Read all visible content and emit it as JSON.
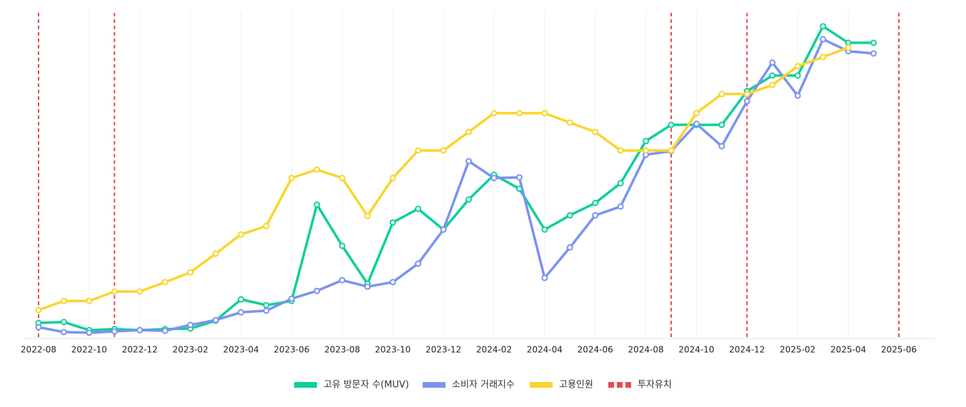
{
  "chart_data": {
    "type": "line",
    "x": [
      "2022-08",
      "2022-09",
      "2022-10",
      "2022-11",
      "2022-12",
      "2023-01",
      "2023-02",
      "2023-03",
      "2023-04",
      "2023-05",
      "2023-06",
      "2023-07",
      "2023-08",
      "2023-09",
      "2023-10",
      "2023-11",
      "2023-12",
      "2024-01",
      "2024-02",
      "2024-03",
      "2024-04",
      "2024-05",
      "2024-06",
      "2024-07",
      "2024-08",
      "2024-09",
      "2024-10",
      "2024-11",
      "2024-12",
      "2025-01",
      "2025-02",
      "2025-03",
      "2025-04",
      "2025-05"
    ],
    "xlim": [
      "2022-08",
      "2025-06"
    ],
    "xticks": [
      "2022-08",
      "2022-10",
      "2022-12",
      "2023-02",
      "2023-04",
      "2023-06",
      "2023-08",
      "2023-10",
      "2023-12",
      "2024-02",
      "2024-04",
      "2024-06",
      "2024-08",
      "2024-10",
      "2024-12",
      "2025-02",
      "2025-04",
      "2025-06"
    ],
    "ylim": [
      0,
      100
    ],
    "grid": true,
    "series": [
      {
        "name": "고유 방문자 수(MUV)",
        "color": "#0fcf9c",
        "values": [
          4.8,
          5.1,
          2.6,
          2.9,
          2.6,
          2.9,
          3.1,
          5.5,
          12.1,
          10.3,
          11.6,
          41.3,
          28.6,
          16.9,
          35.8,
          40.0,
          33.6,
          42.9,
          50.5,
          46.2,
          33.6,
          38.0,
          41.8,
          47.9,
          60.9,
          65.9,
          65.9,
          65.9,
          76.3,
          81.1,
          81.1,
          96.3,
          91.2,
          91.2
        ]
      },
      {
        "name": "소비자 거래지수",
        "color": "#7b93f0",
        "values": [
          3.5,
          2.0,
          1.8,
          2.2,
          2.6,
          2.4,
          4.2,
          5.7,
          8.1,
          8.6,
          12.3,
          14.7,
          18.0,
          16.0,
          17.4,
          23.1,
          33.6,
          54.7,
          49.5,
          49.7,
          18.7,
          28.1,
          38.0,
          40.7,
          56.7,
          57.8,
          66.2,
          59.3,
          73.2,
          85.1,
          74.9,
          92.3,
          88.6,
          87.9
        ]
      },
      {
        "name": "고용인원",
        "color": "#fad52c",
        "values": [
          8.8,
          11.6,
          11.6,
          14.5,
          14.5,
          17.4,
          20.4,
          26.2,
          32.1,
          34.7,
          49.5,
          52.1,
          49.5,
          37.8,
          49.5,
          58.0,
          58.0,
          63.7,
          69.5,
          69.5,
          69.5,
          66.6,
          63.7,
          58.0,
          58.0,
          58.0,
          69.5,
          75.4,
          75.4,
          78.2,
          84.0,
          86.8,
          89.7,
          null
        ]
      }
    ],
    "events": {
      "name": "투자유치",
      "color": "#e84c4c",
      "dates": [
        "2022-08",
        "2022-11",
        "2024-09",
        "2024-12",
        "2025-06"
      ]
    }
  }
}
